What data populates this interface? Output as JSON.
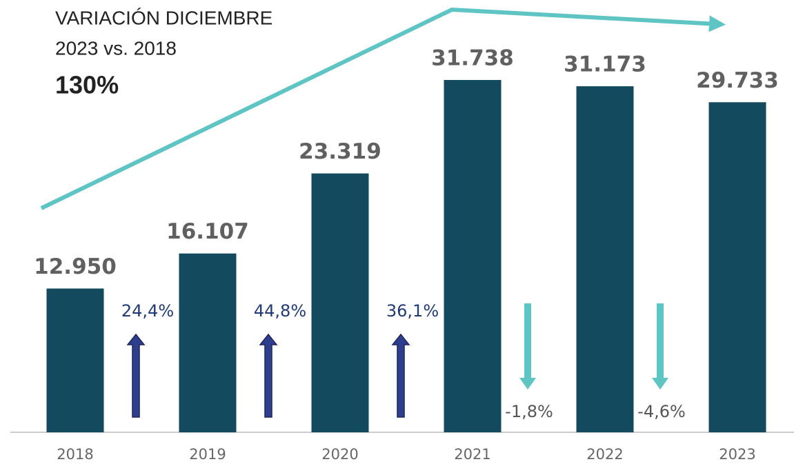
{
  "chart_data": {
    "type": "bar",
    "title": "VARIACIÓN DICIEMBRE",
    "subtitle": "2023 vs. 2018",
    "annotation": "130%",
    "categories": [
      "2018",
      "2019",
      "2020",
      "2021",
      "2022",
      "2023"
    ],
    "values": [
      12950,
      16107,
      23319,
      31738,
      31173,
      29733
    ],
    "value_labels": [
      "12.950",
      "16.107",
      "23.319",
      "31.738",
      "31.173",
      "29.733"
    ],
    "color": "#134a5e",
    "changes": [
      24.4,
      44.8,
      36.1,
      -1.8,
      -4.6
    ],
    "change_labels": [
      "24,4%",
      "44,8%",
      "36,1%",
      "-1,8%",
      "-4,6%"
    ],
    "up_color": "#2e3d8c",
    "down_color": "#5ec4c4"
  }
}
